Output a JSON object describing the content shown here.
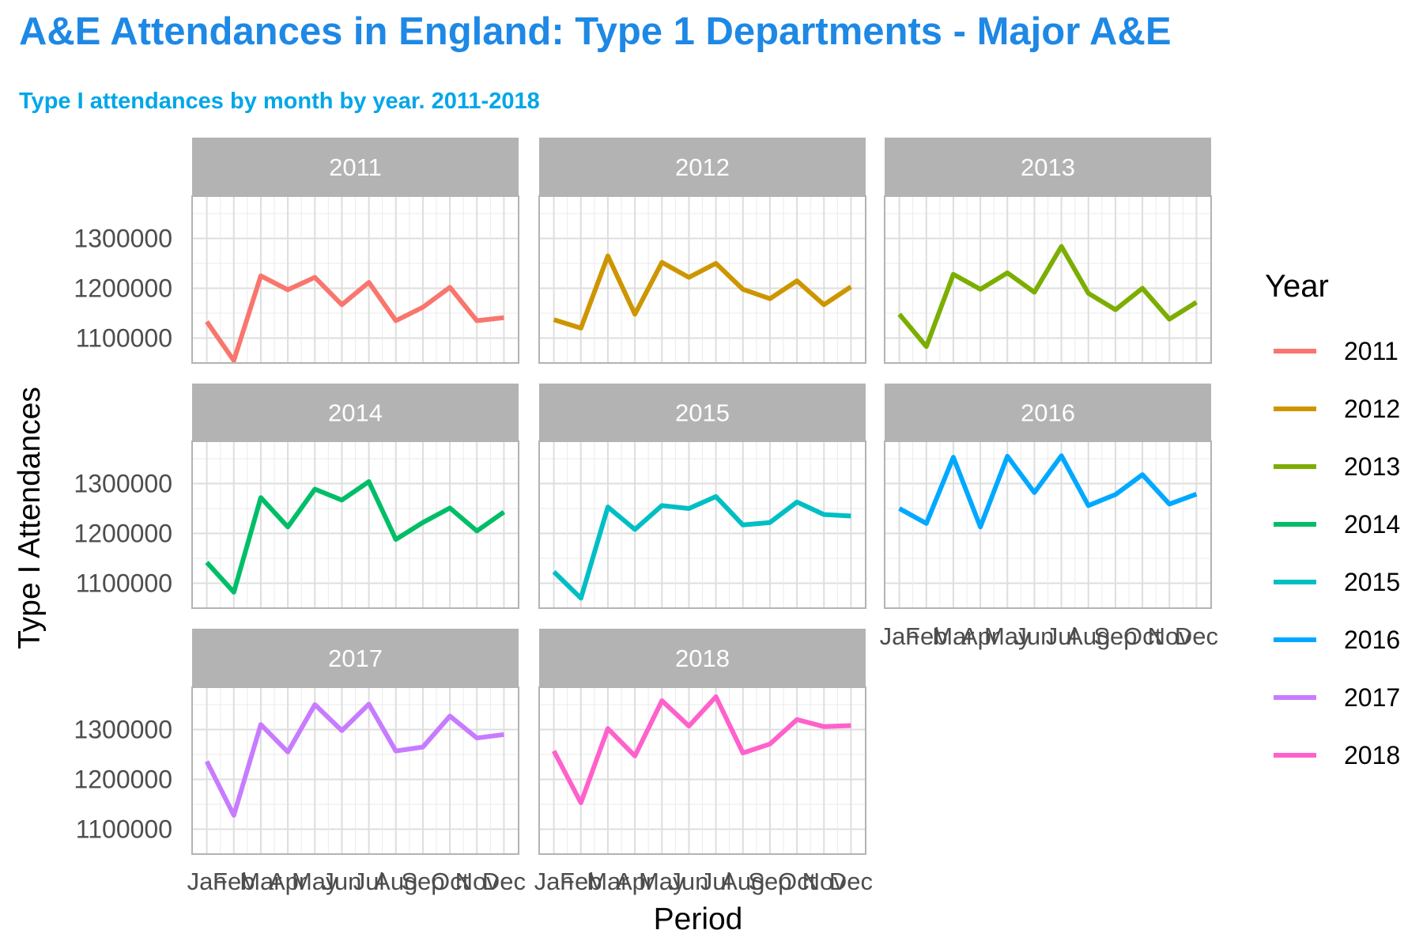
{
  "title": "A&E Attendances in England: Type 1 Departments - Major A&E",
  "subtitle": "Type I attendances by month by year. 2011-2018",
  "chart_data": {
    "type": "line",
    "facet": "Year",
    "x": [
      "Jan",
      "Feb",
      "Mar",
      "Apr",
      "May",
      "Jun",
      "Jul",
      "Aug",
      "Sep",
      "Oct",
      "Nov",
      "Dec"
    ],
    "xlabel": "Period",
    "ylabel": "Type I Attendances",
    "yticks": [
      1100000,
      1200000,
      1300000
    ],
    "ylim": [
      1050000,
      1385000
    ],
    "grid": true,
    "legend_title": "Year",
    "legend_position": "right",
    "series": [
      {
        "name": "2011",
        "color": "#F8766D",
        "values": [
          1133000,
          1055000,
          1225000,
          1197000,
          1222000,
          1167000,
          1212000,
          1135000,
          1162000,
          1202000,
          1135000,
          1141000
        ]
      },
      {
        "name": "2012",
        "color": "#CD9600",
        "values": [
          1137000,
          1120000,
          1265000,
          1148000,
          1252000,
          1222000,
          1250000,
          1198000,
          1179000,
          1215000,
          1167000,
          1203000
        ]
      },
      {
        "name": "2013",
        "color": "#7CAE00",
        "values": [
          1148000,
          1083000,
          1228000,
          1198000,
          1231000,
          1192000,
          1284000,
          1190000,
          1157000,
          1200000,
          1138000,
          1172000
        ]
      },
      {
        "name": "2014",
        "color": "#00BE67",
        "values": [
          1142000,
          1082000,
          1272000,
          1213000,
          1289000,
          1267000,
          1304000,
          1188000,
          1222000,
          1251000,
          1205000,
          1243000
        ]
      },
      {
        "name": "2015",
        "color": "#00BFC4",
        "values": [
          1123000,
          1070000,
          1253000,
          1208000,
          1256000,
          1250000,
          1274000,
          1217000,
          1222000,
          1263000,
          1238000,
          1235000
        ]
      },
      {
        "name": "2016",
        "color": "#00A9FF",
        "values": [
          1250000,
          1220000,
          1353000,
          1213000,
          1355000,
          1282000,
          1356000,
          1256000,
          1278000,
          1318000,
          1259000,
          1279000
        ]
      },
      {
        "name": "2017",
        "color": "#C77CFF",
        "values": [
          1236000,
          1128000,
          1310000,
          1255000,
          1350000,
          1298000,
          1351000,
          1257000,
          1265000,
          1327000,
          1283000,
          1290000
        ]
      },
      {
        "name": "2018",
        "color": "#FF61CC",
        "values": [
          1257000,
          1153000,
          1302000,
          1247000,
          1358000,
          1307000,
          1366000,
          1253000,
          1271000,
          1320000,
          1306000,
          1308000
        ]
      }
    ]
  }
}
